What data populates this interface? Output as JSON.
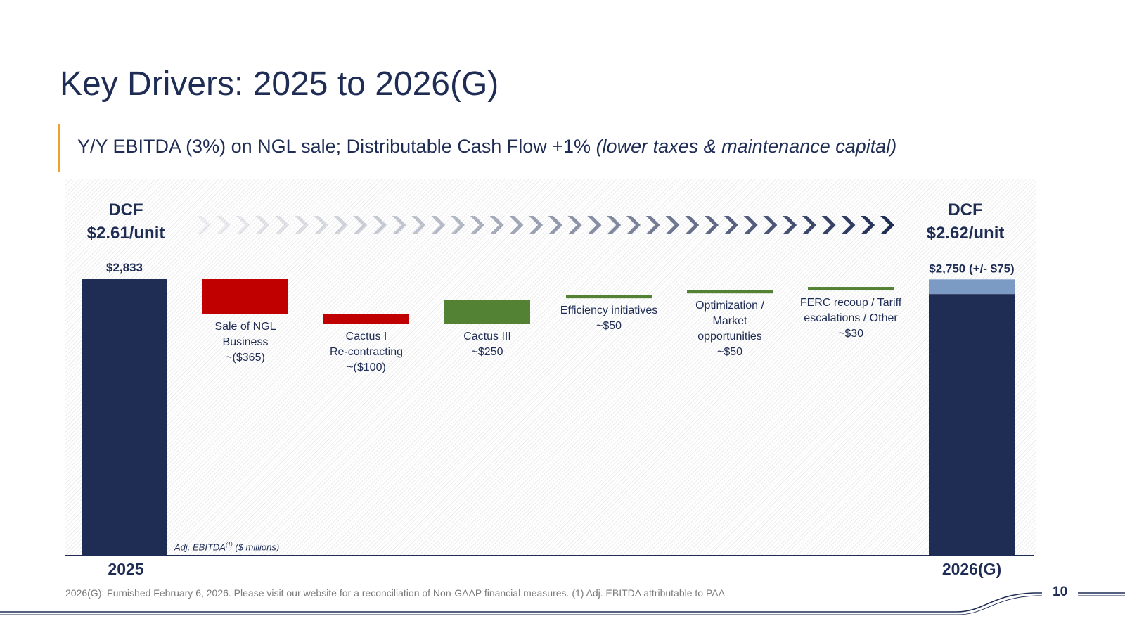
{
  "title": "Key Drivers: 2025 to 2026(G)",
  "subtitle": {
    "main": "Y/Y EBITDA (3%) on NGL sale; Distributable Cash Flow +1% ",
    "italic": "(lower taxes & maintenance capital)"
  },
  "dcf_left": {
    "label": "DCF",
    "value": "$2.61/unit"
  },
  "dcf_right": {
    "label": "DCF",
    "value": "$2.62/unit"
  },
  "axis_label": {
    "text": "Adj. EBITDA",
    "sup": "(1)",
    "units": " ($ millions)"
  },
  "footnote": "2026(G): Furnished February 6, 2026. Please visit our website for a reconciliation of Non-GAAP financial measures. (1) Adj. EBITDA attributable to PAA",
  "page_number": "10",
  "colors": {
    "navy": "#1f2d55",
    "negative": "#c00000",
    "positive": "#548235",
    "range": "#7b9ac4",
    "accent": "#f0a030"
  },
  "chart_data": {
    "type": "bar",
    "subtype": "waterfall",
    "categories": [
      "2025",
      "Sale of NGL Business",
      "Cactus I Re-contracting",
      "Cactus III",
      "Efficiency initiatives",
      "Optimization / Market opportunities",
      "FERC recoup / Tariff escalations / Other",
      "2026(G)"
    ],
    "steps": [
      {
        "kind": "total",
        "value": 2833,
        "label_lines": [
          "$2,833"
        ],
        "axis_label": "2025"
      },
      {
        "kind": "delta",
        "value": -365,
        "label_lines": [
          "Sale of NGL",
          "Business",
          "~($365)"
        ]
      },
      {
        "kind": "delta",
        "value": -100,
        "label_lines": [
          "Cactus I",
          "Re-contracting",
          "~($100)"
        ]
      },
      {
        "kind": "delta",
        "value": 250,
        "label_lines": [
          "Cactus III",
          "~$250"
        ]
      },
      {
        "kind": "delta",
        "value": 50,
        "label_lines": [
          "Efficiency initiatives",
          "~$50"
        ]
      },
      {
        "kind": "delta",
        "value": 50,
        "label_lines": [
          "Optimization /",
          "Market",
          "opportunities",
          "~$50"
        ]
      },
      {
        "kind": "delta",
        "value": 30,
        "label_lines": [
          "FERC recoup / Tariff",
          "escalations / Other",
          "~$30"
        ]
      },
      {
        "kind": "total",
        "value": 2750,
        "range": 75,
        "label_lines": [
          "$2,750 (+/- $75)"
        ],
        "axis_label": "2026(G)"
      }
    ],
    "ylabel": "Adj. EBITDA ($ millions)",
    "grid": false,
    "legend": "none"
  }
}
